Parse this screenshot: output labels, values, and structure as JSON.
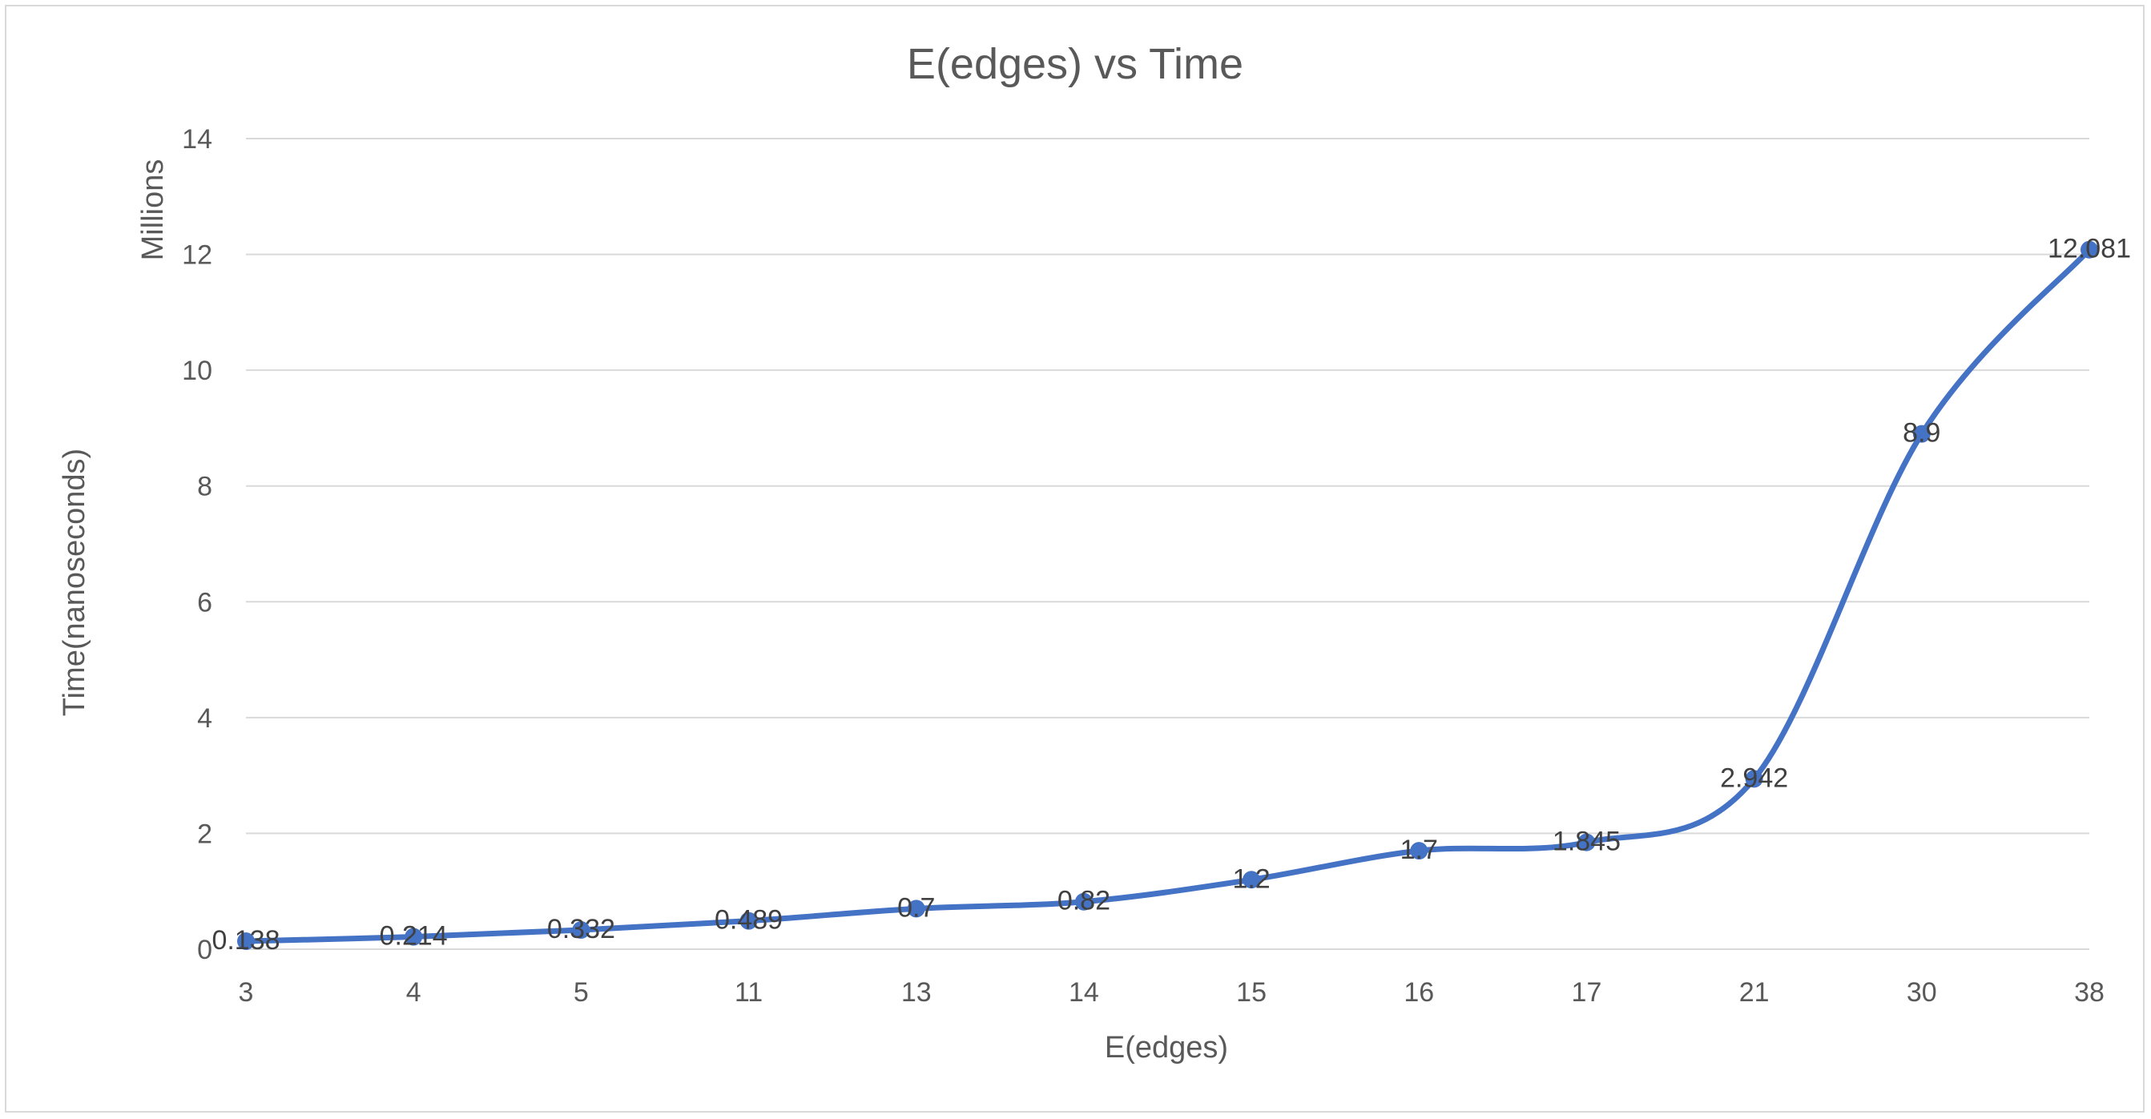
{
  "chart_data": {
    "type": "line",
    "title": "E(edges) vs Time",
    "xlabel": "E(edges)",
    "ylabel": "Time(nanoseconds)",
    "y_unit_label": "Millions",
    "categories": [
      "3",
      "4",
      "5",
      "11",
      "13",
      "14",
      "15",
      "16",
      "17",
      "21",
      "30",
      "38"
    ],
    "series": [
      {
        "values": [
          0.138,
          0.214,
          0.332,
          0.489,
          0.7,
          0.82,
          1.2,
          1.7,
          1.845,
          2.942,
          8.9,
          12.081
        ],
        "labels": [
          "0.138",
          "0.214",
          "0.332",
          "0.489",
          "0.7",
          "0.82",
          "1.2",
          "1.7",
          "1.845",
          "2.942",
          "8.9",
          "12.081"
        ],
        "color": "#4472c4"
      }
    ],
    "ylim": [
      0,
      14
    ],
    "y_ticks": [
      "0",
      "2",
      "4",
      "6",
      "8",
      "10",
      "12",
      "14"
    ],
    "grid": true,
    "legend": "none",
    "smooth": true
  }
}
